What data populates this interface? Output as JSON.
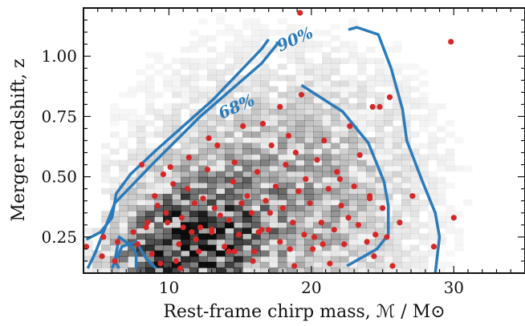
{
  "chart_data": {
    "type": "heatmap",
    "title": "",
    "xlabel": "Rest-frame chirp mass, ℳ / M⊙",
    "ylabel": "Merger redshift, z",
    "xlim": [
      4,
      35
    ],
    "ylim": [
      0.1,
      1.2
    ],
    "xticks": [
      10,
      20,
      30
    ],
    "xtick_labels": [
      "10",
      "20",
      "30"
    ],
    "yticks": [
      0.25,
      0.5,
      0.75,
      1.0
    ],
    "ytick_labels": [
      "0.25",
      "0.50",
      "0.75",
      "1.00"
    ],
    "grid": false,
    "legend": "none",
    "colors": {
      "heatmap": "#000000",
      "contour": "#2b7bba",
      "points": "#d62728"
    },
    "heatmap_desc": "grayscale 2D histogram of simulated mergers, densest near 10-12 solar masses at low redshift, fading toward high mass and high redshift",
    "contours": [
      {
        "label": "68%",
        "label_pos": {
          "x": 14.9,
          "y": 0.77
        },
        "path": [
          [
            4.3,
            0.12
          ],
          [
            4.8,
            0.18
          ],
          [
            6.2,
            0.39
          ],
          [
            8.8,
            0.55
          ],
          [
            12.2,
            0.75
          ],
          [
            16.5,
            0.97
          ],
          [
            17.6,
            1.05
          ],
          [
            17.6,
            1.06
          ]
        ],
        "path2": [
          [
            19.3,
            0.88
          ],
          [
            22.2,
            0.77
          ],
          [
            24.0,
            0.64
          ],
          [
            25.1,
            0.48
          ],
          [
            25.4,
            0.38
          ],
          [
            25.4,
            0.26
          ],
          [
            24.6,
            0.2
          ],
          [
            22.5,
            0.13
          ]
        ],
        "path3": [
          [
            7.7,
            0.12
          ],
          [
            7.7,
            0.18
          ],
          [
            7.2,
            0.22
          ],
          [
            6.5,
            0.25
          ],
          [
            6.2,
            0.15
          ],
          [
            6.5,
            0.12
          ]
        ]
      },
      {
        "label": "90%",
        "label_pos": {
          "x": 19.0,
          "y": 1.05
        },
        "path": [
          [
            4.2,
            0.24
          ],
          [
            5.2,
            0.27
          ],
          [
            6.0,
            0.33
          ],
          [
            6.3,
            0.43
          ],
          [
            7.3,
            0.51
          ],
          [
            9.1,
            0.61
          ],
          [
            13.1,
            0.82
          ],
          [
            16.5,
            1.03
          ],
          [
            17.0,
            1.07
          ]
        ],
        "path2": [
          [
            22.6,
            1.11
          ],
          [
            23.2,
            1.12
          ],
          [
            24.7,
            1.09
          ],
          [
            25.6,
            0.95
          ],
          [
            26.4,
            0.78
          ],
          [
            26.7,
            0.65
          ],
          [
            27.8,
            0.48
          ],
          [
            28.7,
            0.35
          ],
          [
            29.0,
            0.25
          ],
          [
            28.7,
            0.1
          ]
        ],
        "path3": [
          [
            6.0,
            0.12
          ],
          [
            6.7,
            0.21
          ],
          [
            7.7,
            0.23
          ],
          [
            8.4,
            0.16
          ],
          [
            9.1,
            0.12
          ]
        ]
      }
    ],
    "points": {
      "name": "",
      "x": [
        4.2,
        5.4,
        5.3,
        6.2,
        6.4,
        7.5,
        7.8,
        8.4,
        8.5,
        8.8,
        9.0,
        9.2,
        9.6,
        9.8,
        10.1,
        10.3,
        10.7,
        10.9,
        11.3,
        11.4,
        11.6,
        11.8,
        12.1,
        12.4,
        12.7,
        13.0,
        13.2,
        13.4,
        13.9,
        14.2,
        14.5,
        14.6,
        14.9,
        15.2,
        15.5,
        15.8,
        16.0,
        16.2,
        16.6,
        16.8,
        17.0,
        17.2,
        17.5,
        17.8,
        18.0,
        18.2,
        18.4,
        18.7,
        18.9,
        19.1,
        19.3,
        19.5,
        19.6,
        19.9,
        20.1,
        20.4,
        20.7,
        20.9,
        21.2,
        21.6,
        21.8,
        22.1,
        22.3,
        22.7,
        23.0,
        23.3,
        23.4,
        23.9,
        24.1,
        24.3,
        24.5,
        24.8,
        25.0,
        25.3,
        25.5,
        25.7,
        26.2,
        27.1,
        28.6,
        29.8,
        30.0,
        19.2,
        24.1,
        12.8,
        14.6,
        16.3,
        17.8,
        18.5,
        20.2,
        21.3,
        22.0,
        10.5,
        11.9,
        13.6,
        15.1,
        9.9,
        12.2,
        14.2,
        15.9,
        17.1,
        18.8,
        20.8,
        22.6,
        24.4,
        11.0,
        13.0,
        16.5,
        9.4,
        10.8,
        8.1
      ],
      "y": [
        0.21,
        0.25,
        0.17,
        0.15,
        0.23,
        0.27,
        0.22,
        0.29,
        0.31,
        0.18,
        0.42,
        0.38,
        0.51,
        0.35,
        0.54,
        0.47,
        0.22,
        0.33,
        0.45,
        0.58,
        0.27,
        0.39,
        0.19,
        0.41,
        0.53,
        0.28,
        0.37,
        0.63,
        0.21,
        0.32,
        0.48,
        0.56,
        0.26,
        0.71,
        0.42,
        0.35,
        0.19,
        0.52,
        0.72,
        0.4,
        0.28,
        0.63,
        0.46,
        0.23,
        0.37,
        0.55,
        0.67,
        0.31,
        0.6,
        0.44,
        0.84,
        0.26,
        0.49,
        0.39,
        0.2,
        0.57,
        0.31,
        0.65,
        0.45,
        0.28,
        0.52,
        0.38,
        0.22,
        0.71,
        0.46,
        0.3,
        0.59,
        0.23,
        0.42,
        0.79,
        0.26,
        0.79,
        0.37,
        0.25,
        0.83,
        0.13,
        0.31,
        0.42,
        0.21,
        1.06,
        0.33,
        1.18,
        0.41,
        0.66,
        0.19,
        0.27,
        0.79,
        0.2,
        0.25,
        0.14,
        0.49,
        0.15,
        0.24,
        0.34,
        0.39,
        0.31,
        0.29,
        0.19,
        0.15,
        0.35,
        0.13,
        0.22,
        0.33,
        0.17,
        0.29,
        0.27,
        0.28,
        0.14,
        0.12,
        0.55,
        0.23
      ]
    }
  }
}
